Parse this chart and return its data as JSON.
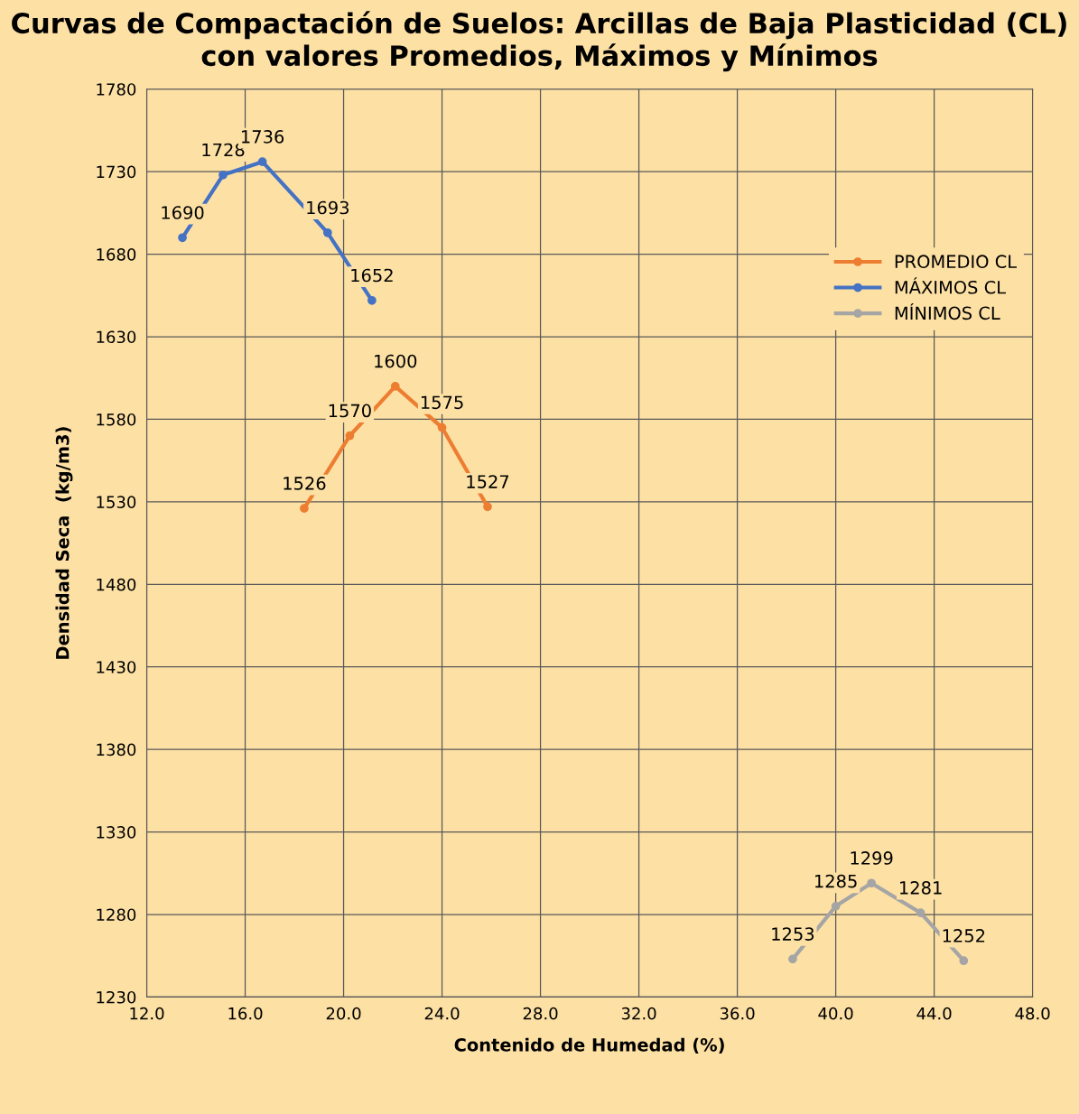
{
  "chart_data": {
    "type": "line",
    "title": "Curvas de Compactación de Suelos: Arcillas de Baja Plasticidad (CL) con valores Promedios, Máximos y Mínimos",
    "xlabel": "Contenido de Humedad (%)",
    "ylabel": "Densidad Seca  (kg/m3)",
    "series": [
      {
        "name": "PROMEDIO CL",
        "color": "#ed7d31",
        "x": [
          18.4,
          20.25,
          22.1,
          24.0,
          25.85
        ],
        "values": [
          1526,
          1570,
          1600,
          1575,
          1527
        ]
      },
      {
        "name": "MÁXIMOS CL",
        "color": "#4472c4",
        "x": [
          13.45,
          15.1,
          16.7,
          19.35,
          21.15
        ],
        "values": [
          1690,
          1728,
          1736,
          1693,
          1652
        ]
      },
      {
        "name": "MÍNIMOS CL",
        "color": "#a5a5a5",
        "x": [
          38.25,
          40.0,
          41.45,
          43.45,
          45.2
        ],
        "values": [
          1253,
          1285,
          1299,
          1281,
          1252
        ]
      }
    ],
    "xlim": [
      12,
      48
    ],
    "xticks": [
      {
        "value": 12,
        "label": "12.0"
      },
      {
        "value": 16,
        "label": "16.0"
      },
      {
        "value": 20,
        "label": "20.0"
      },
      {
        "value": 24,
        "label": "24.0"
      },
      {
        "value": 28,
        "label": "28.0"
      },
      {
        "value": 32,
        "label": "32.0"
      },
      {
        "value": 36,
        "label": "36.0"
      },
      {
        "value": 40,
        "label": "40.0"
      },
      {
        "value": 44,
        "label": "44.0"
      },
      {
        "value": 48,
        "label": "48.0"
      }
    ],
    "ylim": [
      1230,
      1780
    ],
    "yticks": [
      1230,
      1280,
      1330,
      1380,
      1430,
      1480,
      1530,
      1580,
      1630,
      1680,
      1730,
      1780
    ],
    "grid": true,
    "legend": "right",
    "marker": "circle",
    "line_style": "solid",
    "data_labels": true
  }
}
